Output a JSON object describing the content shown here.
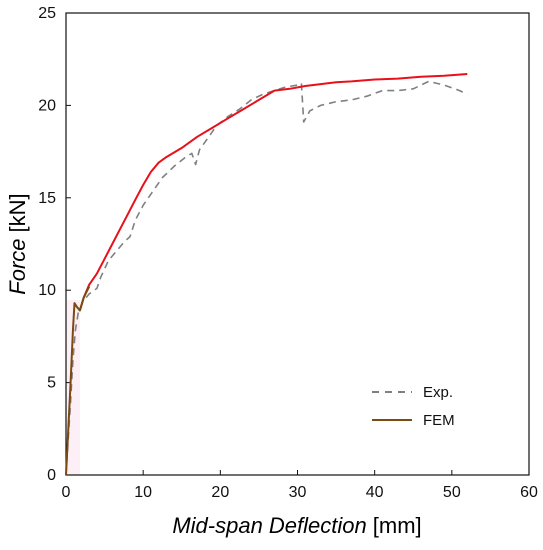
{
  "chart_data": {
    "type": "line",
    "title": "",
    "xlabel_italic": "Mid-span Deflection",
    "xlabel_unit": "[mm]",
    "ylabel_italic": "Force",
    "ylabel_unit": "[kN]",
    "xlim": [
      0,
      60
    ],
    "ylim": [
      0,
      25
    ],
    "x_ticks": [
      0,
      10,
      20,
      30,
      40,
      50,
      60
    ],
    "y_ticks": [
      0,
      5,
      10,
      15,
      20,
      25
    ],
    "grid": false,
    "legend_position": "bottom-right",
    "series": [
      {
        "name": "Exp.",
        "color": "#808080",
        "dash": true,
        "points": [
          [
            0,
            0
          ],
          [
            0.3,
            2.0
          ],
          [
            0.6,
            4.0
          ],
          [
            0.9,
            6.2
          ],
          [
            1.2,
            7.8
          ],
          [
            1.6,
            8.8
          ],
          [
            2.2,
            9.4
          ],
          [
            3.0,
            9.8
          ],
          [
            4.0,
            10.1
          ],
          [
            4.5,
            10.7
          ],
          [
            5.5,
            11.6
          ],
          [
            6.5,
            12.1
          ],
          [
            7.5,
            12.6
          ],
          [
            8.3,
            12.9
          ],
          [
            9.0,
            13.8
          ],
          [
            10.0,
            14.6
          ],
          [
            11.5,
            15.5
          ],
          [
            12.5,
            16.1
          ],
          [
            14.0,
            16.7
          ],
          [
            15.5,
            17.2
          ],
          [
            16.3,
            17.4
          ],
          [
            16.8,
            16.8
          ],
          [
            17.3,
            17.6
          ],
          [
            18.5,
            18.3
          ],
          [
            19.5,
            18.9
          ],
          [
            21.0,
            19.4
          ],
          [
            22.5,
            19.8
          ],
          [
            24.0,
            20.3
          ],
          [
            25.5,
            20.6
          ],
          [
            27.0,
            20.8
          ],
          [
            28.5,
            21.0
          ],
          [
            30.0,
            21.1
          ],
          [
            30.5,
            21.2
          ],
          [
            30.8,
            19.1
          ],
          [
            31.6,
            19.7
          ],
          [
            33.0,
            20.0
          ],
          [
            35.0,
            20.2
          ],
          [
            37.0,
            20.3
          ],
          [
            39.0,
            20.5
          ],
          [
            41.0,
            20.8
          ],
          [
            43.0,
            20.8
          ],
          [
            45.0,
            20.9
          ],
          [
            47.0,
            21.3
          ],
          [
            49.0,
            21.1
          ],
          [
            51.0,
            20.8
          ],
          [
            52.0,
            20.6
          ]
        ]
      },
      {
        "name": "FEM",
        "color": "#7a4a10",
        "dash": false,
        "points": [
          [
            0,
            0
          ],
          [
            0.3,
            2.5
          ],
          [
            0.6,
            5.0
          ],
          [
            0.9,
            7.8
          ],
          [
            1.1,
            9.3
          ],
          [
            1.4,
            9.1
          ],
          [
            1.8,
            8.9
          ],
          [
            2.3,
            9.6
          ],
          [
            3.0,
            10.2
          ]
        ]
      },
      {
        "name": "",
        "color": "#e8101a",
        "dash": false,
        "points": [
          [
            1.8,
            8.9
          ],
          [
            2.3,
            9.6
          ],
          [
            3.0,
            10.3
          ],
          [
            4.0,
            10.9
          ],
          [
            5.0,
            11.7
          ],
          [
            6.0,
            12.5
          ],
          [
            7.0,
            13.3
          ],
          [
            8.0,
            14.1
          ],
          [
            9.0,
            14.9
          ],
          [
            10.0,
            15.7
          ],
          [
            11.0,
            16.4
          ],
          [
            12.0,
            16.9
          ],
          [
            13.0,
            17.2
          ],
          [
            15.0,
            17.7
          ],
          [
            17.0,
            18.3
          ],
          [
            19.0,
            18.8
          ],
          [
            21.0,
            19.3
          ],
          [
            23.0,
            19.8
          ],
          [
            25.0,
            20.3
          ],
          [
            27.0,
            20.8
          ],
          [
            29.0,
            20.9
          ],
          [
            31.0,
            21.05
          ],
          [
            33.0,
            21.15
          ],
          [
            35.0,
            21.25
          ],
          [
            37.0,
            21.3
          ],
          [
            40.0,
            21.4
          ],
          [
            43.0,
            21.45
          ],
          [
            46.0,
            21.55
          ],
          [
            49.0,
            21.6
          ],
          [
            52.0,
            21.7
          ]
        ]
      }
    ]
  }
}
